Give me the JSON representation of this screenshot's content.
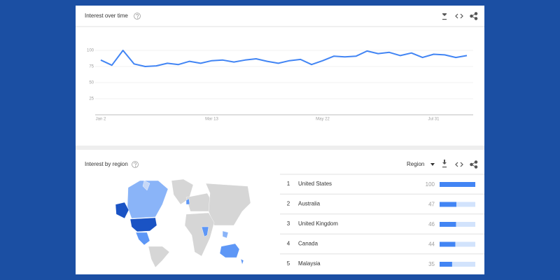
{
  "chart_data": [
    {
      "type": "line",
      "title": "Interest over time",
      "categories": [
        "Jan 2",
        null,
        null,
        null,
        null,
        null,
        null,
        null,
        null,
        null,
        "Mar 13",
        null,
        null,
        null,
        null,
        null,
        null,
        null,
        null,
        null,
        "May 22",
        null,
        null,
        null,
        null,
        null,
        null,
        null,
        null,
        null,
        "Jul 31",
        null,
        null,
        null
      ],
      "values": [
        85,
        77,
        100,
        79,
        75,
        76,
        80,
        78,
        83,
        80,
        84,
        85,
        82,
        85,
        87,
        83,
        80,
        84,
        86,
        78,
        84,
        91,
        90,
        91,
        99,
        95,
        97,
        92,
        96,
        89,
        94,
        93,
        89,
        92
      ],
      "color": "#4285f4",
      "ylim": [
        0,
        100
      ],
      "yticks": [
        25,
        50,
        75,
        100
      ],
      "grid": true
    },
    {
      "type": "bar",
      "title": "Interest by region",
      "selector": "Region",
      "ranks": [
        1,
        2,
        3,
        4,
        5
      ],
      "categories": [
        "United States",
        "Australia",
        "United Kingdom",
        "Canada",
        "Malaysia"
      ],
      "values": [
        100,
        47,
        46,
        44,
        35
      ],
      "color": "#4285f4",
      "xlim": [
        0,
        100
      ]
    }
  ]
}
